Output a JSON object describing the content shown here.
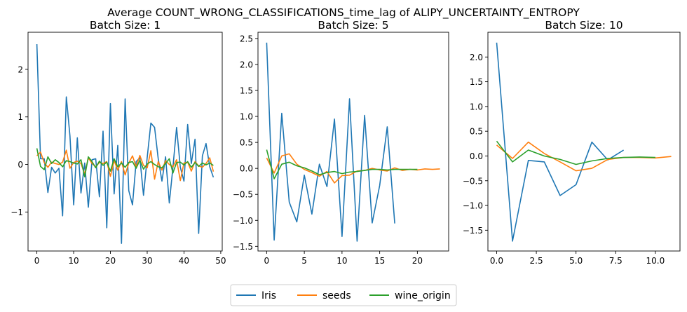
{
  "title": "Average COUNT_WRONG_CLASSIFICATIONS_time_lag of ALIPY_UNCERTAINTY_ENTROPY",
  "legend": {
    "placement": "bottom-center",
    "entries": [
      {
        "label": "Iris",
        "color": "#1f77b4"
      },
      {
        "label": "seeds",
        "color": "#ff7f0e"
      },
      {
        "label": "wine_origin",
        "color": "#2ca02c"
      }
    ]
  },
  "chart_data": [
    {
      "type": "line",
      "title": "Batch Size: 1",
      "xlim": [
        -2.4,
        50.4
      ],
      "ylim": [
        -1.82,
        2.78
      ],
      "xticks": [
        0,
        10,
        20,
        30,
        40,
        50
      ],
      "xticklabels": [
        "0",
        "10",
        "20",
        "30",
        "40",
        "50"
      ],
      "yticks": [
        -1,
        0,
        1,
        2
      ],
      "yticklabels": [
        "−1",
        "0",
        "1",
        "2"
      ],
      "series": [
        {
          "name": "Iris",
          "color": "#1f77b4",
          "x": [
            0,
            1,
            2,
            3,
            4,
            5,
            6,
            7,
            8,
            9,
            10,
            11,
            12,
            13,
            14,
            15,
            16,
            17,
            18,
            19,
            20,
            21,
            22,
            23,
            24,
            25,
            26,
            27,
            28,
            29,
            30,
            31,
            32,
            33,
            34,
            35,
            36,
            37,
            38,
            39,
            40,
            41,
            42,
            43,
            44,
            45,
            46,
            47,
            48
          ],
          "y": [
            2.53,
            0.12,
            0.12,
            -0.59,
            -0.06,
            -0.18,
            -0.08,
            -1.08,
            1.42,
            0.6,
            -0.85,
            0.56,
            -0.6,
            0.03,
            -0.9,
            0.1,
            0.12,
            -0.68,
            0.7,
            -1.33,
            1.28,
            -0.62,
            0.4,
            -1.66,
            1.38,
            -0.55,
            -0.85,
            0.06,
            0.14,
            -0.65,
            0.15,
            0.87,
            0.78,
            0.12,
            -0.35,
            0.16,
            -0.81,
            -0.06,
            0.78,
            -0.06,
            -0.35,
            0.84,
            0.02,
            0.53,
            -1.45,
            0.18,
            0.44,
            -0.05,
            -0.27
          ]
        },
        {
          "name": "seeds",
          "color": "#ff7f0e",
          "x": [
            0,
            1,
            2,
            3,
            4,
            5,
            6,
            7,
            8,
            9,
            10,
            11,
            12,
            13,
            14,
            15,
            16,
            17,
            18,
            19,
            20,
            21,
            22,
            23,
            24,
            25,
            26,
            27,
            28,
            29,
            30,
            31,
            32,
            33,
            34,
            35,
            36,
            37,
            38,
            39,
            40,
            41,
            42,
            43,
            44,
            45,
            46,
            47,
            48
          ],
          "y": [
            0.18,
            0.26,
            0.04,
            -0.06,
            0.05,
            0.02,
            0.0,
            0.05,
            0.3,
            -0.08,
            0.04,
            0.07,
            0.02,
            -0.2,
            0.14,
            0.02,
            -0.05,
            0.04,
            0.02,
            0.06,
            -0.25,
            0.08,
            -0.12,
            0.06,
            -0.22,
            0.03,
            0.18,
            -0.05,
            0.19,
            -0.02,
            -0.07,
            0.29,
            -0.31,
            0.06,
            -0.12,
            0.08,
            0.0,
            -0.05,
            0.1,
            -0.34,
            0.03,
            0.05,
            -0.14,
            0.06,
            -0.03,
            -0.06,
            0.02,
            0.14,
            -0.15
          ]
        },
        {
          "name": "wine_origin",
          "color": "#2ca02c",
          "x": [
            0,
            1,
            2,
            3,
            4,
            5,
            6,
            7,
            8,
            9,
            10,
            11,
            12,
            13,
            14,
            15,
            16,
            17,
            18,
            19,
            20,
            21,
            22,
            23,
            24,
            25,
            26,
            27,
            28,
            29,
            30,
            31,
            32,
            33,
            34,
            35,
            36,
            37,
            38,
            39,
            40,
            41,
            42,
            43,
            44,
            45,
            46,
            47,
            48
          ],
          "y": [
            0.34,
            -0.04,
            -0.11,
            0.16,
            0.02,
            0.1,
            0.04,
            -0.05,
            0.08,
            0.06,
            0.03,
            0.01,
            0.1,
            -0.26,
            0.16,
            0.06,
            -0.07,
            0.07,
            -0.02,
            0.05,
            -0.14,
            0.12,
            -0.05,
            0.03,
            -0.06,
            0.04,
            0.06,
            -0.08,
            0.09,
            -0.1,
            0.01,
            0.06,
            0.0,
            -0.05,
            -0.07,
            0.02,
            0.12,
            -0.18,
            0.04,
            0.05,
            -0.01,
            0.06,
            -0.06,
            0.04,
            -0.04,
            0.03,
            -0.01,
            0.03,
            -0.02
          ]
        }
      ]
    },
    {
      "type": "line",
      "title": "Batch Size: 5",
      "xlim": [
        -1.15,
        24.15
      ],
      "ylim": [
        -1.59,
        2.62
      ],
      "xticks": [
        0,
        5,
        10,
        15,
        20
      ],
      "xticklabels": [
        "0",
        "5",
        "10",
        "15",
        "20"
      ],
      "yticks": [
        -1.5,
        -1.0,
        -0.5,
        0.0,
        0.5,
        1.0,
        1.5,
        2.0,
        2.5
      ],
      "yticklabels": [
        "−1.5",
        "−1.0",
        "−0.5",
        "0.0",
        "0.5",
        "1.0",
        "1.5",
        "2.0",
        "2.5"
      ],
      "series": [
        {
          "name": "Iris",
          "color": "#1f77b4",
          "x": [
            0,
            1,
            2,
            3,
            4,
            5,
            6,
            7,
            8,
            9,
            10,
            11,
            12,
            13,
            14,
            15,
            16,
            17
          ],
          "y": [
            2.42,
            -1.38,
            1.06,
            -0.65,
            -1.03,
            -0.13,
            -0.88,
            0.08,
            -0.35,
            0.95,
            -1.31,
            1.34,
            -1.4,
            1.02,
            -1.05,
            -0.33,
            0.8,
            -1.06
          ]
        },
        {
          "name": "seeds",
          "color": "#ff7f0e",
          "x": [
            0,
            1,
            2,
            3,
            4,
            5,
            6,
            7,
            8,
            9,
            10,
            11,
            12,
            13,
            14,
            15,
            16,
            17,
            18,
            19,
            20,
            21,
            22,
            23
          ],
          "y": [
            0.2,
            -0.09,
            0.24,
            0.28,
            0.08,
            -0.02,
            -0.08,
            -0.15,
            -0.06,
            -0.28,
            -0.14,
            -0.13,
            -0.05,
            -0.04,
            0.0,
            -0.03,
            -0.05,
            0.01,
            -0.04,
            -0.02,
            -0.03,
            -0.01,
            -0.02,
            -0.01
          ]
        },
        {
          "name": "wine_origin",
          "color": "#2ca02c",
          "x": [
            0,
            1,
            2,
            3,
            4,
            5,
            6,
            7,
            8,
            9,
            10,
            11,
            12,
            13,
            14,
            15,
            16,
            17,
            18,
            19,
            20
          ],
          "y": [
            0.36,
            -0.2,
            0.08,
            0.12,
            0.05,
            0.01,
            -0.05,
            -0.12,
            -0.08,
            -0.06,
            -0.1,
            -0.07,
            -0.06,
            -0.04,
            -0.02,
            -0.02,
            -0.03,
            -0.02,
            -0.02,
            -0.02,
            -0.02
          ]
        }
      ]
    },
    {
      "type": "line",
      "title": "Batch Size: 10",
      "xlim": [
        -0.55,
        11.55
      ],
      "ylim": [
        -1.92,
        2.5
      ],
      "xticks": [
        0,
        2.5,
        5,
        7.5,
        10
      ],
      "xticklabels": [
        "0.0",
        "2.5",
        "5.0",
        "7.5",
        "10.0"
      ],
      "yticks": [
        -1.5,
        -1.0,
        -0.5,
        0.0,
        0.5,
        1.0,
        1.5,
        2.0
      ],
      "yticklabels": [
        "−1.5",
        "−1.0",
        "−0.5",
        "0.0",
        "0.5",
        "1.0",
        "1.5",
        "2.0"
      ],
      "series": [
        {
          "name": "Iris",
          "color": "#1f77b4",
          "x": [
            0,
            1,
            2,
            3,
            4,
            5,
            6,
            7,
            8
          ],
          "y": [
            2.29,
            -1.72,
            -0.09,
            -0.12,
            -0.8,
            -0.58,
            0.28,
            -0.08,
            0.12
          ]
        },
        {
          "name": "seeds",
          "color": "#ff7f0e",
          "x": [
            0,
            1,
            2,
            3,
            4,
            5,
            6,
            7,
            8,
            9,
            10,
            11
          ],
          "y": [
            0.22,
            -0.05,
            0.28,
            0.05,
            -0.12,
            -0.3,
            -0.25,
            -0.07,
            -0.03,
            -0.03,
            -0.04,
            -0.01
          ]
        },
        {
          "name": "wine_origin",
          "color": "#2ca02c",
          "x": [
            0,
            1,
            2,
            3,
            4,
            5,
            6,
            7,
            8,
            9,
            10
          ],
          "y": [
            0.3,
            -0.12,
            0.12,
            0.0,
            -0.07,
            -0.17,
            -0.1,
            -0.05,
            -0.03,
            -0.02,
            -0.03
          ]
        }
      ]
    }
  ]
}
